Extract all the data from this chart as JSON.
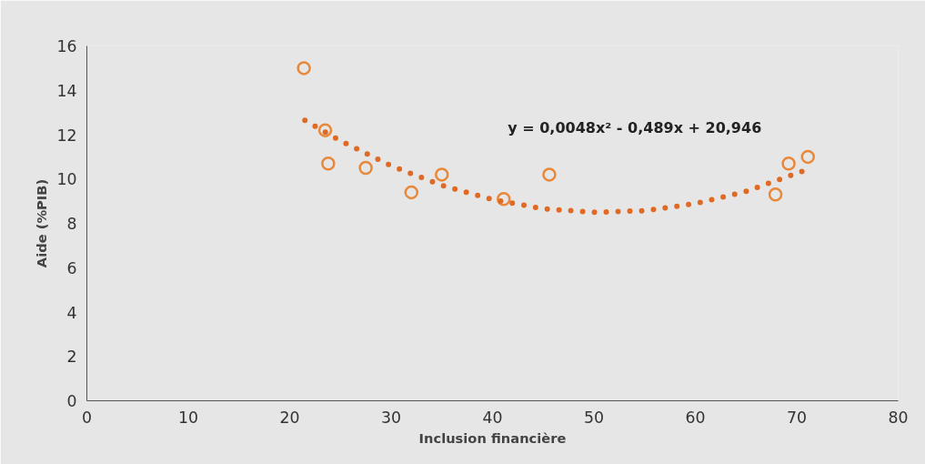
{
  "chart_data": {
    "type": "scatter",
    "xlabel": "Inclusion financière",
    "ylabel": "Aide (%PIB)",
    "xlim": [
      0,
      80
    ],
    "ylim": [
      0,
      16
    ],
    "xticks": [
      0,
      10,
      20,
      30,
      40,
      50,
      60,
      70,
      80
    ],
    "yticks": [
      0,
      2,
      4,
      6,
      8,
      10,
      12,
      14,
      16
    ],
    "series": [
      {
        "marker": "circle",
        "color": "#e8883a",
        "x": [
          21.4,
          23.5,
          23.8,
          27.5,
          32.0,
          35.0,
          41.1,
          45.6,
          67.9,
          69.2,
          71.1
        ],
        "values": [
          15.0,
          12.2,
          10.7,
          10.5,
          9.4,
          10.2,
          9.1,
          10.2,
          9.3,
          10.7,
          11.0
        ]
      },
      {
        "type": "line",
        "color": "#e06a24",
        "line_style": "dotted",
        "x": [
          21.5,
          25,
          30,
          35,
          40,
          45,
          50,
          55,
          60,
          65,
          71
        ],
        "values": [
          12.65,
          11.72,
          10.6,
          9.71,
          9.07,
          8.66,
          8.5,
          8.57,
          8.89,
          9.44,
          10.42
        ]
      }
    ],
    "annotations": [
      "y = 0,0048x² - 0,489x + 20,946"
    ]
  }
}
